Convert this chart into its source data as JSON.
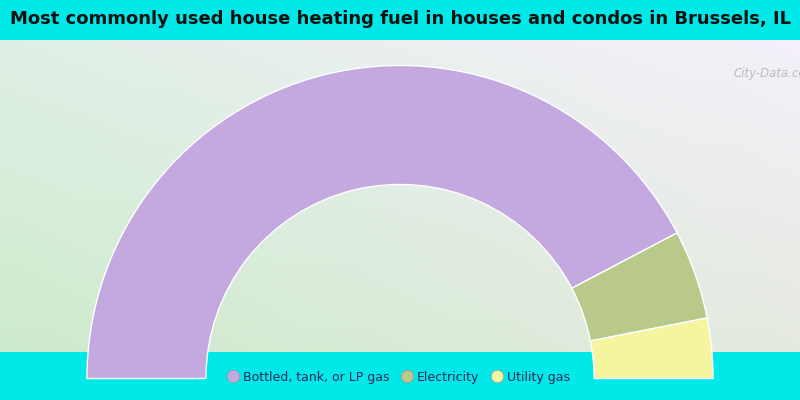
{
  "title": "Most commonly used house heating fuel in houses and condos in Brussels, IL",
  "title_fontsize": 13,
  "background_color_outer": "#00E8E8",
  "slices": [
    {
      "label": "Bottled, tank, or LP gas",
      "value": 84.6,
      "color": "#c4a8e0"
    },
    {
      "label": "Electricity",
      "value": 9.2,
      "color": "#b8c98a"
    },
    {
      "label": "Utility gas",
      "value": 6.2,
      "color": "#f5f5a0"
    }
  ],
  "legend_labels": [
    "Bottled, tank, or LP gas",
    "Electricity",
    "Utility gas"
  ],
  "legend_colors": [
    "#c4a8e0",
    "#b8c98a",
    "#f5f5a0"
  ],
  "watermark": "City-Data.com",
  "gradient_topleft": [
    0.88,
    0.94,
    0.9
  ],
  "gradient_topright": [
    0.96,
    0.94,
    0.98
  ],
  "gradient_bottomleft": [
    0.8,
    0.92,
    0.8
  ],
  "gradient_bottomright": [
    0.9,
    0.92,
    0.88
  ]
}
